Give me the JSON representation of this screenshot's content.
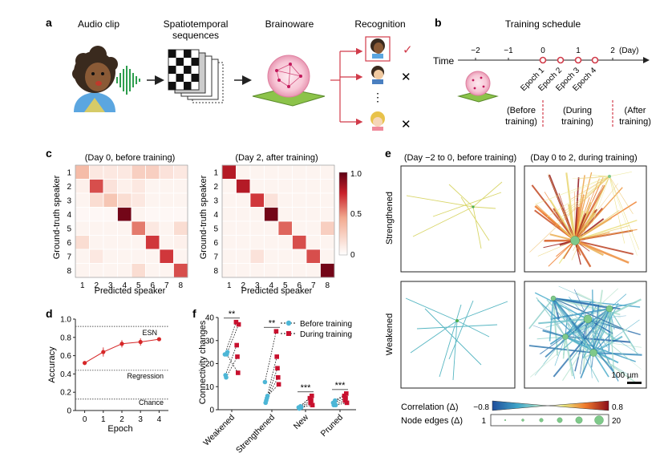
{
  "panel_a": {
    "letter": "a",
    "labels": [
      "Audio clip",
      "Spatiotemporal",
      "sequences",
      "Brainoware",
      "Recognition"
    ],
    "check_mark": "✓",
    "cross_mark": "✕",
    "ellipsis": "⋮"
  },
  "panel_b": {
    "letter": "b",
    "title": "Training schedule",
    "axis_label": "Time",
    "unit": "(Day)",
    "ticks": [
      "−2",
      "−1",
      "0",
      "1",
      "2"
    ],
    "epochs": [
      "Epoch 1",
      "Epoch 2",
      "Epoch 3",
      "Epoch 4"
    ],
    "phase_before": [
      "(Before",
      "training)"
    ],
    "phase_during": [
      "(During",
      "training)"
    ],
    "phase_after": [
      "(After",
      "training)"
    ]
  },
  "panel_c": {
    "letter": "c",
    "title_left": "(Day 0, before training)",
    "title_right": "(Day 2, after training)",
    "ylabel": "Ground-truth speaker",
    "xlabel": "Predicted speaker",
    "tick_labels": [
      "1",
      "2",
      "3",
      "4",
      "5",
      "6",
      "7",
      "8"
    ],
    "colorbar_ticks": [
      "1.0",
      "0.5",
      "0"
    ]
  },
  "panel_d": {
    "letter": "d",
    "ylabel": "Accuracy",
    "xlabel": "Epoch",
    "ref_labels": [
      "ESN",
      "Regression",
      "Chance"
    ]
  },
  "panel_e": {
    "letter": "e",
    "title_left": "(Day −2 to 0, before training)",
    "title_right": "(Day 0 to 2, during training)",
    "row_top": "Strengthened",
    "row_bottom": "Weakened",
    "scale_bar": "100 µm",
    "corr_label": "Correlation (Δ)",
    "corr_min": "−0.8",
    "corr_max": "0.8",
    "node_label": "Node edges (Δ)",
    "node_min": "1",
    "node_max": "20"
  },
  "panel_f": {
    "letter": "f",
    "ylabel": "Connectivity changes",
    "significance": [
      "**",
      "**",
      "***",
      "***"
    ],
    "legend": [
      "Before training",
      "During training"
    ]
  },
  "chart_data": [
    {
      "id": "c-left",
      "type": "heatmap",
      "title": "(Day 0, before training)",
      "xlabel": "Predicted speaker",
      "ylabel": "Ground-truth speaker",
      "rows": [
        "1",
        "2",
        "3",
        "4",
        "5",
        "6",
        "7",
        "8"
      ],
      "cols": [
        "1",
        "2",
        "3",
        "4",
        "5",
        "6",
        "7",
        "8"
      ],
      "range": [
        0,
        1
      ],
      "values": [
        [
          0.35,
          0.12,
          0.12,
          0.12,
          0.25,
          0.25,
          0.15,
          0.12
        ],
        [
          0.08,
          0.65,
          0.15,
          0.08,
          0.12,
          0.06,
          0.06,
          0.06
        ],
        [
          0.06,
          0.18,
          0.3,
          0.18,
          0.12,
          0.06,
          0.06,
          0.06
        ],
        [
          0.04,
          0.04,
          0.04,
          0.95,
          0.06,
          0.04,
          0.04,
          0.04
        ],
        [
          0.06,
          0.06,
          0.06,
          0.06,
          0.55,
          0.12,
          0.06,
          0.18
        ],
        [
          0.18,
          0.06,
          0.06,
          0.06,
          0.06,
          0.7,
          0.06,
          0.08
        ],
        [
          0.06,
          0.12,
          0.06,
          0.06,
          0.06,
          0.06,
          0.7,
          0.06
        ],
        [
          0.06,
          0.06,
          0.06,
          0.06,
          0.18,
          0.06,
          0.06,
          0.65
        ]
      ]
    },
    {
      "id": "c-right",
      "type": "heatmap",
      "title": "(Day 2, after training)",
      "xlabel": "Predicted speaker",
      "ylabel": "Ground-truth speaker",
      "rows": [
        "1",
        "2",
        "3",
        "4",
        "5",
        "6",
        "7",
        "8"
      ],
      "cols": [
        "1",
        "2",
        "3",
        "4",
        "5",
        "6",
        "7",
        "8"
      ],
      "range": [
        0,
        1
      ],
      "values": [
        [
          0.8,
          0.06,
          0.06,
          0.06,
          0.06,
          0.06,
          0.06,
          0.06
        ],
        [
          0.06,
          0.8,
          0.06,
          0.06,
          0.06,
          0.06,
          0.06,
          0.06
        ],
        [
          0.06,
          0.06,
          0.7,
          0.15,
          0.06,
          0.06,
          0.06,
          0.06
        ],
        [
          0.06,
          0.06,
          0.06,
          0.95,
          0.06,
          0.06,
          0.06,
          0.06
        ],
        [
          0.06,
          0.06,
          0.06,
          0.06,
          0.6,
          0.06,
          0.06,
          0.25
        ],
        [
          0.06,
          0.06,
          0.06,
          0.06,
          0.06,
          0.65,
          0.06,
          0.06
        ],
        [
          0.06,
          0.06,
          0.15,
          0.06,
          0.06,
          0.06,
          0.65,
          0.06
        ],
        [
          0.06,
          0.06,
          0.06,
          0.06,
          0.06,
          0.06,
          0.06,
          0.95
        ]
      ]
    },
    {
      "id": "d",
      "type": "line",
      "xlabel": "Epoch",
      "ylabel": "Accuracy",
      "x": [
        0,
        1,
        2,
        3,
        4
      ],
      "y": [
        0.52,
        0.64,
        0.73,
        0.75,
        0.78
      ],
      "err": [
        0.02,
        0.05,
        0.04,
        0.04,
        0.02
      ],
      "xlim": [
        -0.5,
        4.5
      ],
      "ylim": [
        0,
        1.0
      ],
      "yticks": [
        0,
        0.2,
        0.4,
        0.6,
        0.8,
        1.0
      ],
      "ytick_labels": [
        "0",
        "0.2",
        "0.4",
        "0.6",
        "0.8",
        "1.0"
      ],
      "xticks": [
        0,
        1,
        2,
        3,
        4
      ],
      "reference_lines": [
        {
          "name": "ESN",
          "value": 0.92
        },
        {
          "name": "Regression",
          "value": 0.44
        },
        {
          "name": "Chance",
          "value": 0.125
        }
      ]
    },
    {
      "id": "f",
      "type": "scatter",
      "ylabel": "Connectivity changes",
      "categories": [
        "Weakened",
        "Strengthened",
        "New",
        "Pruned"
      ],
      "ylim": [
        0,
        40
      ],
      "yticks": [
        0,
        10,
        20,
        30,
        40
      ],
      "series": [
        {
          "name": "Before training",
          "values": [
            [
              24,
              15,
              14,
              24,
              25
            ],
            [
              12,
              3,
              4,
              5,
              6
            ],
            [
              1,
              0.5,
              1,
              1.5,
              1
            ],
            [
              3,
              2,
              3,
              4,
              2
            ]
          ]
        },
        {
          "name": "During training",
          "values": [
            [
              38,
              28,
              23,
              16,
              37
            ],
            [
              34,
              23,
              18,
              14,
              11
            ],
            [
              5,
              3,
              4,
              6,
              2
            ],
            [
              6,
              4,
              5,
              7,
              3
            ]
          ]
        }
      ],
      "significance": [
        "**",
        "**",
        "***",
        "***"
      ]
    }
  ]
}
